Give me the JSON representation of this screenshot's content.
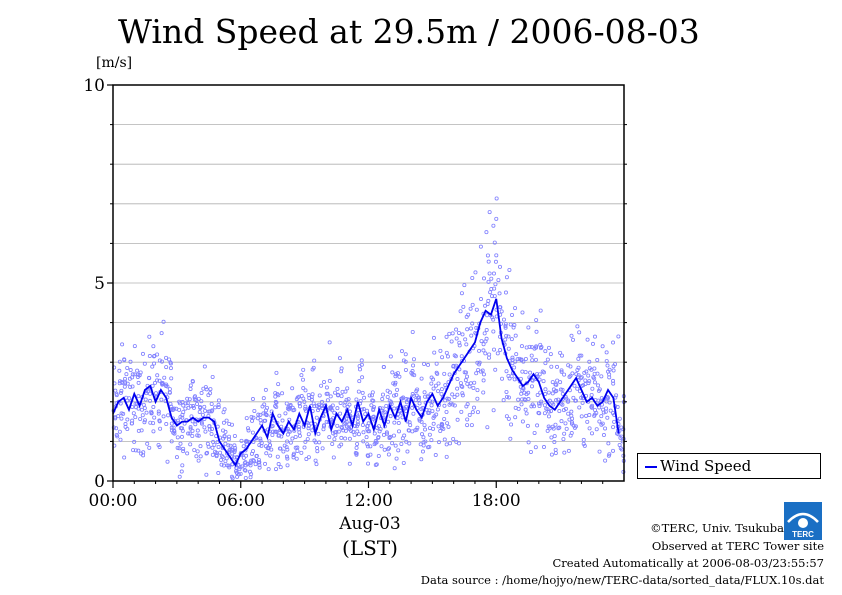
{
  "chart_data": {
    "type": "scatter",
    "title": "Wind Speed at 29.5m / 2006-08-03",
    "ylabel": "[m/s]",
    "ylim": [
      0,
      10
    ],
    "yticks": [
      "0",
      "5",
      "10"
    ],
    "xlim": [
      "00:00",
      "24:00"
    ],
    "xticks": [
      "00:00",
      "06:00",
      "12:00",
      "18:00"
    ],
    "xlabel_date": "Aug-03",
    "xlabel_unit": "(LST)",
    "grid": true,
    "legend_position": "bottom-right outside",
    "series": [
      {
        "name": "Wind Speed",
        "color": "#0000ee",
        "x_hours": [
          0,
          0.25,
          0.5,
          0.75,
          1,
          1.25,
          1.5,
          1.75,
          2,
          2.25,
          2.5,
          2.75,
          3,
          3.25,
          3.5,
          3.75,
          4,
          4.25,
          4.5,
          4.75,
          5,
          5.25,
          5.5,
          5.75,
          6,
          6.25,
          6.5,
          6.75,
          7,
          7.25,
          7.5,
          7.75,
          8,
          8.25,
          8.5,
          8.75,
          9,
          9.25,
          9.5,
          9.75,
          10,
          10.25,
          10.5,
          10.75,
          11,
          11.25,
          11.5,
          11.75,
          12,
          12.25,
          12.5,
          12.75,
          13,
          13.25,
          13.5,
          13.75,
          14,
          14.25,
          14.5,
          14.75,
          15,
          15.25,
          15.5,
          15.75,
          16,
          16.25,
          16.5,
          16.75,
          17,
          17.25,
          17.5,
          17.75,
          18,
          18.25,
          18.5,
          18.75,
          19,
          19.25,
          19.5,
          19.75,
          20,
          20.25,
          20.5,
          20.75,
          21,
          21.25,
          21.5,
          21.75,
          22,
          22.25,
          22.5,
          22.75,
          23,
          23.25,
          23.5,
          23.75
        ],
        "values": [
          1.7,
          2.0,
          2.1,
          1.8,
          2.2,
          1.9,
          2.3,
          2.4,
          2.0,
          2.3,
          2.1,
          1.6,
          1.4,
          1.5,
          1.5,
          1.6,
          1.5,
          1.6,
          1.6,
          1.5,
          1.0,
          0.8,
          0.6,
          0.4,
          0.7,
          0.8,
          1.0,
          1.2,
          1.4,
          1.1,
          1.7,
          1.4,
          1.2,
          1.5,
          1.3,
          1.7,
          1.4,
          1.9,
          1.2,
          1.6,
          1.9,
          1.3,
          1.7,
          1.5,
          1.8,
          1.4,
          2.0,
          1.5,
          1.7,
          1.3,
          1.8,
          1.4,
          1.9,
          1.6,
          2.0,
          1.5,
          2.1,
          1.8,
          1.6,
          2.0,
          2.2,
          1.9,
          2.1,
          2.4,
          2.7,
          2.9,
          3.1,
          3.3,
          3.5,
          4.0,
          4.3,
          4.2,
          4.6,
          3.6,
          3.1,
          2.8,
          2.6,
          2.4,
          2.5,
          2.7,
          2.5,
          2.1,
          1.9,
          1.8,
          2.0,
          2.2,
          2.4,
          2.6,
          2.3,
          2.0,
          2.1,
          1.9,
          2.0,
          2.3,
          2.1,
          1.2
        ]
      }
    ]
  },
  "credits": {
    "copyright": "©TERC, Univ. Tsukuba",
    "observed": "Observed at TERC Tower site",
    "created": "Created Automatically at 2006-08-03/23:55:57",
    "source": "Data source : /home/hojyo/new/TERC-data/sorted_data/FLUX.10s.dat"
  },
  "logo": {
    "text": "TERC",
    "color": "#1a6fc4"
  }
}
